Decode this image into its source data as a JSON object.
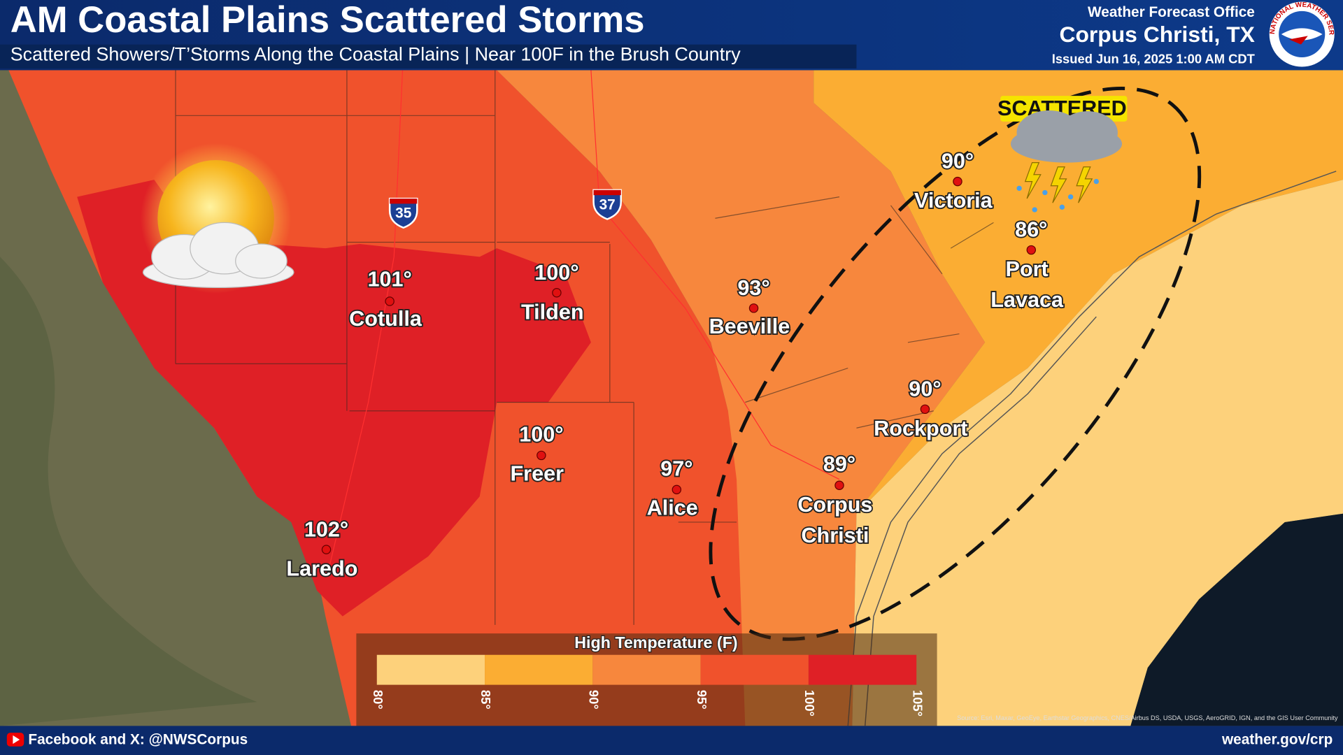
{
  "header": {
    "title": "AM Coastal Plains Scattered Storms",
    "subtitle": "Scattered Showers/T’Storms Along the Coastal Plains | Near 100F in the Brush Country",
    "office": "Weather Forecast Office",
    "office_city": "Corpus Christi, TX",
    "issued": "Issued Jun 16, 2025 1:00 AM CDT",
    "logo_text": "NATIONAL WEATHER SERVICE"
  },
  "storm_label": "SCATTERED",
  "highways": [
    "35",
    "37"
  ],
  "cities": [
    {
      "name": [
        "Cotulla"
      ],
      "temp": "101°"
    },
    {
      "name": [
        "Tilden"
      ],
      "temp": "100°"
    },
    {
      "name": [
        "Beeville"
      ],
      "temp": "93°"
    },
    {
      "name": [
        "Victoria"
      ],
      "temp": "90°"
    },
    {
      "name": [
        "Port",
        "Lavaca"
      ],
      "temp": "86°"
    },
    {
      "name": [
        "Rockport"
      ],
      "temp": "90°"
    },
    {
      "name": [
        "Corpus",
        "Christi"
      ],
      "temp": "89°"
    },
    {
      "name": [
        "Freer"
      ],
      "temp": "100°"
    },
    {
      "name": [
        "Alice"
      ],
      "temp": "97°"
    },
    {
      "name": [
        "Laredo"
      ],
      "temp": "102°"
    }
  ],
  "legend": {
    "title": "High Temperature (F)",
    "colors": [
      "#fdd17b",
      "#fbad33",
      "#f7873d",
      "#f0522c",
      "#df2026"
    ],
    "ticks": [
      "80°",
      "85°",
      "90°",
      "95°",
      "100°",
      "105°"
    ]
  },
  "attribution": "Source: Esri, Maxar, GeoEye, Earthstar Geographics, CNES/Airbus DS, USDA, USGS, AeroGRID, IGN, and the GIS User Community",
  "footer": {
    "social": "Facebook and X: @NWSCorpus",
    "url": "weather.gov/crp"
  }
}
